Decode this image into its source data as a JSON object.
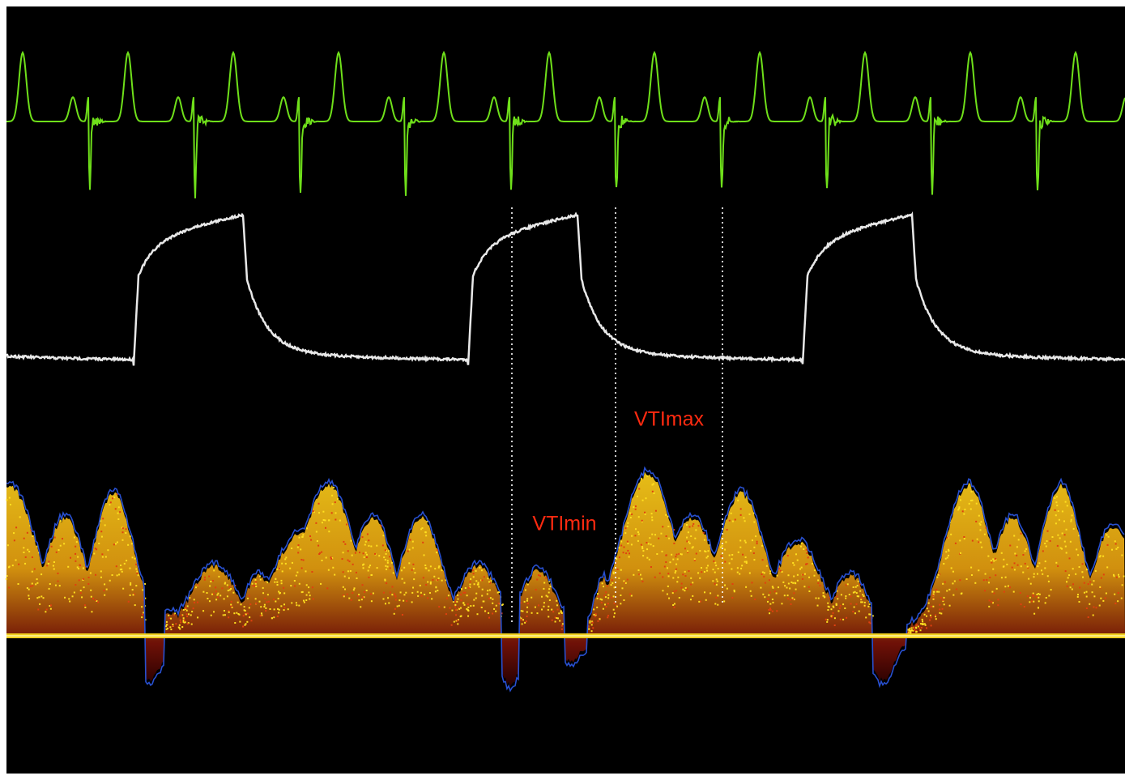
{
  "annotations": {
    "vti_max": "VTImax",
    "vti_min": "VTImin"
  }
}
